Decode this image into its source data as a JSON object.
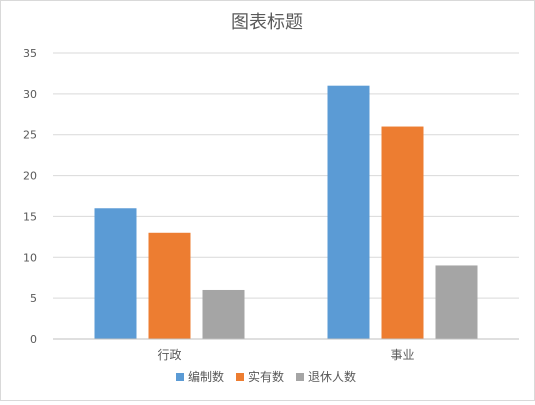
{
  "chart_data": {
    "type": "bar",
    "title": "图表标题",
    "xlabel": "",
    "ylabel": "",
    "categories": [
      "行政",
      "事业"
    ],
    "series": [
      {
        "name": "编制数",
        "values": [
          16,
          31
        ],
        "color": "#5b9bd5"
      },
      {
        "name": "实有数",
        "values": [
          13,
          26
        ],
        "color": "#ed7d31"
      },
      {
        "name": "退休人数",
        "values": [
          6,
          9
        ],
        "color": "#a5a5a5"
      }
    ],
    "ylim": [
      0,
      35
    ],
    "yticks": [
      0,
      5,
      10,
      15,
      20,
      25,
      30,
      35
    ],
    "grid": true,
    "legend": "bottom"
  },
  "colors": {
    "grid": "#d9d9d9",
    "axis": "#bfbfbf",
    "text": "#595959"
  }
}
